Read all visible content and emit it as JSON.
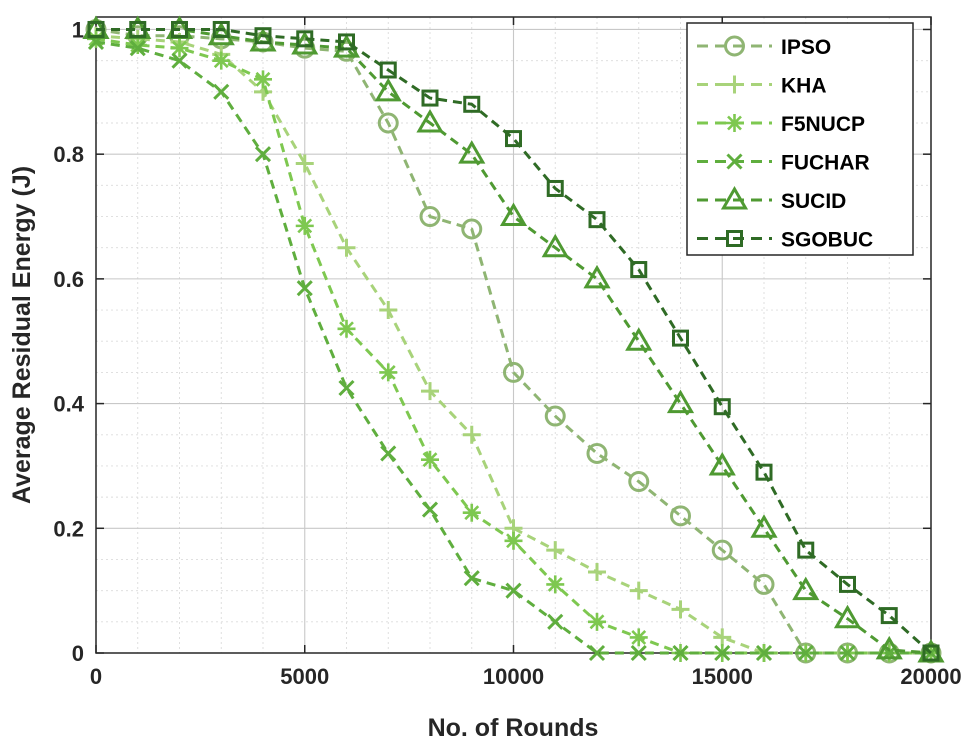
{
  "chart_data": {
    "type": "line",
    "title": "",
    "xlabel": "No. of Rounds",
    "ylabel": "Average Residual Energy (J)",
    "xlim": [
      0,
      20000
    ],
    "ylim": [
      0,
      1.02
    ],
    "xticks": [
      0,
      5000,
      10000,
      15000,
      20000
    ],
    "xtick_labels": [
      "0",
      "5000",
      "10000",
      "15000",
      "20000"
    ],
    "yticks": [
      0,
      0.2,
      0.4,
      0.6,
      0.8,
      1
    ],
    "ytick_labels": [
      "0",
      "0.2",
      "0.4",
      "0.6",
      "0.8",
      "1"
    ],
    "grid": true,
    "legend_position": "top-right",
    "x": [
      0,
      1000,
      2000,
      3000,
      4000,
      5000,
      6000,
      7000,
      8000,
      9000,
      10000,
      11000,
      12000,
      13000,
      14000,
      15000,
      16000,
      17000,
      18000,
      19000,
      20000
    ],
    "series": [
      {
        "name": "IPSO",
        "marker": "circle",
        "color": "#8fb573",
        "values": [
          1.0,
          0.99,
          0.99,
          0.985,
          0.98,
          0.97,
          0.965,
          0.85,
          0.7,
          0.68,
          0.45,
          0.38,
          0.32,
          0.275,
          0.22,
          0.165,
          0.11,
          0.0,
          0.0,
          0.0,
          0.0
        ]
      },
      {
        "name": "KHA",
        "marker": "plus",
        "color": "#a8d37a",
        "values": [
          0.99,
          0.985,
          0.98,
          0.96,
          0.9,
          0.785,
          0.65,
          0.55,
          0.42,
          0.35,
          0.2,
          0.165,
          0.13,
          0.1,
          0.07,
          0.025,
          0.0,
          0.0,
          0.0,
          0.0,
          0.0
        ]
      },
      {
        "name": "F5NUCP",
        "marker": "asterisk",
        "color": "#7ec850",
        "values": [
          0.985,
          0.975,
          0.97,
          0.95,
          0.92,
          0.685,
          0.52,
          0.45,
          0.31,
          0.225,
          0.18,
          0.11,
          0.05,
          0.025,
          0.0,
          0.0,
          0.0,
          0.0,
          0.0,
          0.0,
          0.0
        ]
      },
      {
        "name": "FUCHAR",
        "marker": "x",
        "color": "#5fae3e",
        "values": [
          0.98,
          0.97,
          0.95,
          0.9,
          0.8,
          0.585,
          0.425,
          0.32,
          0.23,
          0.12,
          0.1,
          0.05,
          0.0,
          0.0,
          0.0,
          0.0,
          0.0,
          0.0,
          0.0,
          0.0,
          0.0
        ]
      },
      {
        "name": "SUCID",
        "marker": "triangle",
        "color": "#4f9a32",
        "values": [
          1.0,
          1.0,
          1.0,
          0.99,
          0.98,
          0.975,
          0.97,
          0.9,
          0.85,
          0.8,
          0.7,
          0.65,
          0.6,
          0.5,
          0.4,
          0.3,
          0.2,
          0.1,
          0.055,
          0.005,
          0.0
        ]
      },
      {
        "name": "SGOBUC",
        "marker": "square",
        "color": "#2f6b25",
        "values": [
          1.0,
          1.0,
          1.0,
          1.0,
          0.99,
          0.985,
          0.98,
          0.935,
          0.89,
          0.88,
          0.825,
          0.745,
          0.695,
          0.615,
          0.505,
          0.395,
          0.29,
          0.165,
          0.11,
          0.06,
          0.0
        ]
      }
    ]
  }
}
